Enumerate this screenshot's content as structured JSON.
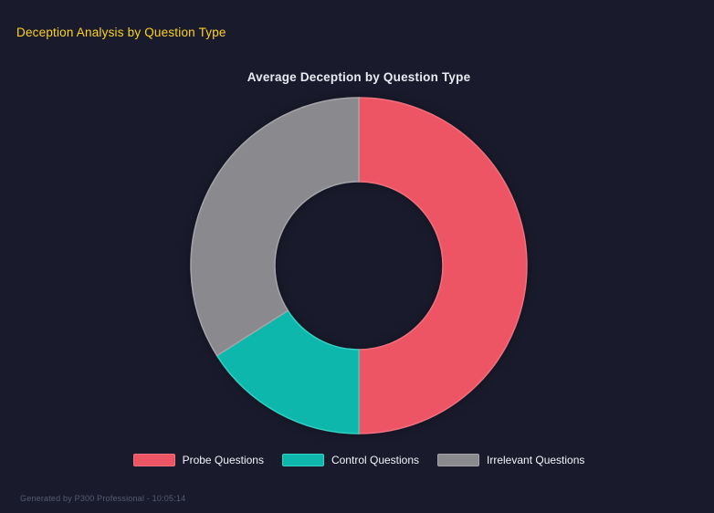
{
  "header": {
    "title": "Deception Analysis by Question Type"
  },
  "chart_data": {
    "type": "doughnut",
    "title": "Average Deception by Question Type",
    "labels": [
      "Probe Questions",
      "Control Questions",
      "Irrelevant Questions"
    ],
    "values_percent": [
      50,
      16,
      34
    ],
    "colors": [
      "#ED5565",
      "#0EB7AB",
      "#8A898E"
    ],
    "border_colors": [
      "#F0707E",
      "#35CFC3",
      "#A5A4A9"
    ],
    "cutout_ratio": 0.5,
    "start_angle_deg": 0,
    "direction": "clockwise",
    "legend_position": "bottom"
  },
  "footer": {
    "text": "Generated by P300 Professional - 10:05:14"
  },
  "theme": {
    "background": "#191B2C",
    "heading_color": "#FFD21E",
    "chart_title_color": "#E9EBF2",
    "legend_text_color": "#F2F4F8",
    "footer_text_color": "#565B70"
  }
}
